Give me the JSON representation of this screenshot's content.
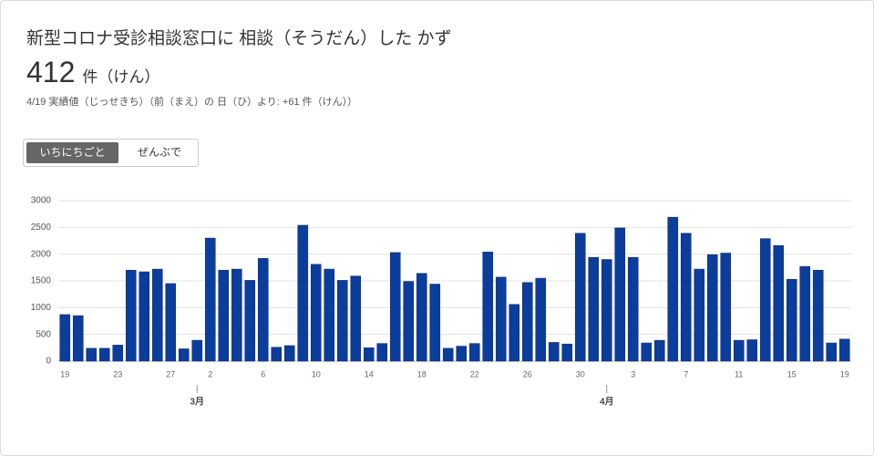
{
  "header": {
    "title": "新型コロナ受診相談窓口に 相談（そうだん）した かず",
    "total": "412",
    "unit": "件（けん）",
    "note": "4/19 実績値（じっせきち）（前（まえ）の 日（ひ）より: +61 件（けん））"
  },
  "toggle": {
    "options": [
      "いちにちごと",
      "ぜんぶで"
    ]
  },
  "chart_data": {
    "type": "bar",
    "categories": [
      "19",
      null,
      null,
      null,
      "23",
      null,
      null,
      null,
      "27",
      null,
      null,
      "2",
      null,
      null,
      null,
      "6",
      null,
      null,
      null,
      "10",
      null,
      null,
      null,
      "14",
      null,
      null,
      null,
      "18",
      null,
      null,
      null,
      "22",
      null,
      null,
      null,
      "26",
      null,
      null,
      null,
      "30",
      null,
      null,
      null,
      "3",
      null,
      null,
      null,
      "7",
      null,
      null,
      null,
      "11",
      null,
      null,
      null,
      "15",
      null,
      null,
      null,
      "19"
    ],
    "months": [
      null,
      null,
      null,
      null,
      null,
      null,
      null,
      null,
      null,
      null,
      "3月",
      null,
      null,
      null,
      null,
      null,
      null,
      null,
      null,
      null,
      null,
      null,
      null,
      null,
      null,
      null,
      null,
      null,
      null,
      null,
      null,
      null,
      null,
      null,
      null,
      null,
      null,
      null,
      null,
      null,
      null,
      "4月",
      null,
      null,
      null,
      null,
      null,
      null,
      null,
      null,
      null,
      null,
      null,
      null,
      null,
      null,
      null,
      null,
      null,
      null
    ],
    "values": [
      870,
      850,
      240,
      240,
      300,
      1700,
      1670,
      1720,
      1450,
      230,
      390,
      2300,
      1700,
      1720,
      1510,
      1920,
      260,
      290,
      2540,
      1810,
      1720,
      1510,
      1590,
      250,
      330,
      2030,
      1490,
      1640,
      1440,
      240,
      280,
      330,
      2040,
      1570,
      1060,
      1470,
      1550,
      350,
      320,
      2390,
      1940,
      1900,
      2490,
      1940,
      340,
      390,
      2690,
      2390,
      1720,
      1990,
      2020,
      390,
      400,
      2290,
      2160,
      1530,
      1770,
      1700,
      340,
      412
    ],
    "color": "#0a3d9c",
    "ylim": [
      0,
      3000
    ],
    "yticks": [
      0,
      500,
      1000,
      1500,
      2000,
      2500,
      3000
    ],
    "grid": true
  }
}
